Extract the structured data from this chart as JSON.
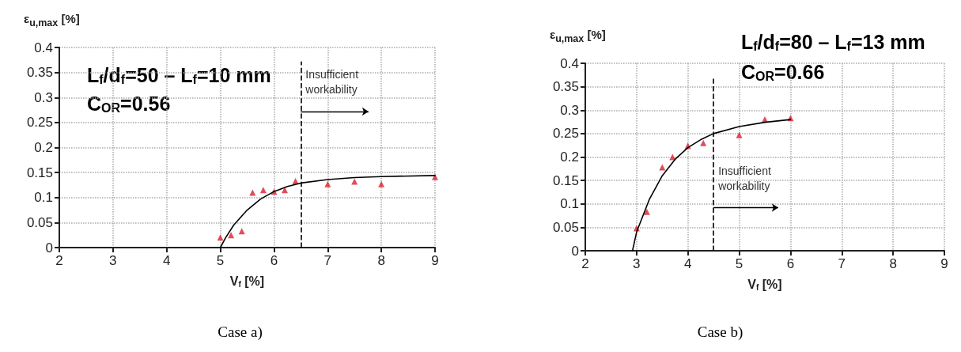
{
  "chart_data": [
    {
      "type": "scatter",
      "title": "Case a)",
      "xlabel": "V$_{f}$ [%]",
      "ylabel": "ε$_{u,max}$ [%]",
      "annotations": [
        "L$_{f}$/d$_{f}$=50 – L$_{f}$=10 mm",
        "C$_{OR}$=0.56"
      ],
      "series": [
        {
          "type": "scatter",
          "color": "#d9202e",
          "marker": "triangle",
          "x": [
            5,
            5.2,
            5.4,
            5.6,
            5.8,
            6,
            6.2,
            6.4,
            7,
            7.5,
            8,
            9
          ],
          "values": [
            0.02,
            0.025,
            0.033,
            0.11,
            0.115,
            0.112,
            0.115,
            0.133,
            0.127,
            0.132,
            0.127,
            0.141
          ]
        },
        {
          "type": "line",
          "color": "#000000",
          "marker": "none",
          "x": [
            5,
            5.1,
            5.25,
            5.5,
            5.75,
            6,
            6.25,
            6.5,
            7,
            7.5,
            8,
            9
          ],
          "values": [
            0,
            0.02,
            0.045,
            0.075,
            0.097,
            0.112,
            0.122,
            0.129,
            0.136,
            0.14,
            0.142,
            0.144
          ]
        }
      ],
      "xlim": [
        2,
        9
      ],
      "xticks": [
        2,
        3,
        4,
        5,
        6,
        7,
        8,
        9
      ],
      "ylim": [
        0,
        0.4
      ],
      "yticks": [
        0,
        0.05,
        0.1,
        0.15,
        0.2,
        0.25,
        0.3,
        0.35,
        0.4
      ],
      "ref_lines": [
        {
          "axis": "x",
          "value": 6.5,
          "label": "Insufficient workability",
          "color": "#000000",
          "line_style": "dashed"
        }
      ],
      "grid": true
    },
    {
      "type": "scatter",
      "title": "Case b)",
      "xlabel": "V$_{f}$ [%]",
      "ylabel": "ε$_{u,max}$ [%]",
      "annotations": [
        "L$_{f}$/d$_{f}$=80 – L$_{f}$=13 mm",
        "C$_{OR}$=0.66"
      ],
      "series": [
        {
          "type": "scatter",
          "color": "#d9202e",
          "marker": "triangle",
          "x": [
            3,
            3.2,
            3.5,
            3.7,
            4,
            4.3,
            5,
            5.5,
            6
          ],
          "values": [
            0.048,
            0.083,
            0.178,
            0.2,
            0.224,
            0.23,
            0.247,
            0.28,
            0.283
          ]
        },
        {
          "type": "line",
          "color": "#000000",
          "marker": "none",
          "x": [
            2.92,
            3,
            3.25,
            3.5,
            3.75,
            4,
            4.25,
            4.5,
            5,
            5.5,
            6
          ],
          "values": [
            0,
            0.04,
            0.11,
            0.16,
            0.195,
            0.22,
            0.237,
            0.25,
            0.265,
            0.274,
            0.28
          ]
        }
      ],
      "xlim": [
        2,
        9
      ],
      "xticks": [
        2,
        3,
        4,
        5,
        6,
        7,
        8,
        9
      ],
      "ylim": [
        0,
        0.4
      ],
      "yticks": [
        0,
        0.05,
        0.1,
        0.15,
        0.2,
        0.25,
        0.3,
        0.35,
        0.4
      ],
      "ref_lines": [
        {
          "axis": "x",
          "value": 4.5,
          "label": "Insufficient workability",
          "color": "#000000",
          "line_style": "dashed"
        }
      ],
      "grid": true
    }
  ]
}
